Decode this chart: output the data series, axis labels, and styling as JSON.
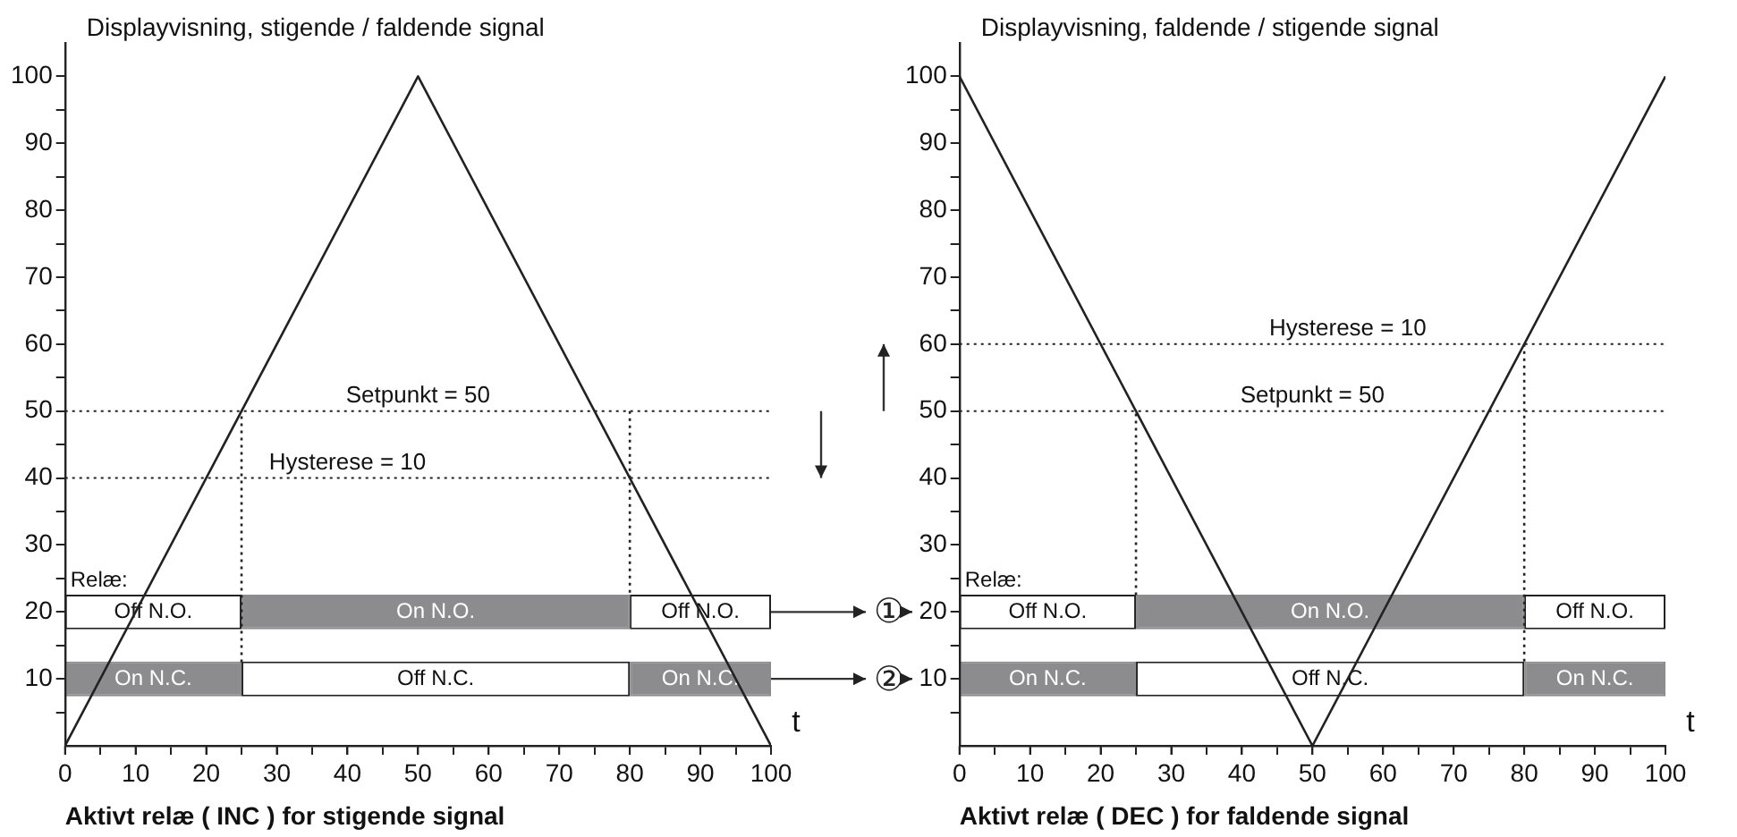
{
  "chart_data": [
    {
      "type": "line",
      "title": "Displayvisning, stigende / faldende signal",
      "xlabel": "t",
      "xlim": [
        0,
        100
      ],
      "ylim": [
        0,
        105
      ],
      "xticks": [
        0,
        {
          "value": 5,
          "label": null
        },
        10,
        {
          "value": 15,
          "label": null
        },
        20,
        {
          "value": 25,
          "label": null
        },
        30,
        {
          "value": 35,
          "label": null
        },
        40,
        {
          "value": 45,
          "label": null
        },
        50,
        {
          "value": 55,
          "label": null
        },
        60,
        {
          "value": 65,
          "label": null
        },
        70,
        {
          "value": 75,
          "label": null
        },
        80,
        {
          "value": 85,
          "label": null
        },
        90,
        {
          "value": 95,
          "label": null
        },
        100
      ],
      "yticks": [
        {
          "value": 5,
          "label": null
        },
        10,
        {
          "value": 15,
          "label": null
        },
        20,
        {
          "value": 25,
          "label": null
        },
        30,
        {
          "value": 35,
          "label": null
        },
        40,
        {
          "value": 45,
          "label": null
        },
        50,
        {
          "value": 55,
          "label": null
        },
        60,
        {
          "value": 65,
          "label": null
        },
        70,
        {
          "value": 75,
          "label": null
        },
        80,
        {
          "value": 85,
          "label": null
        },
        90,
        {
          "value": 95,
          "label": null
        },
        100
      ],
      "grid": false,
      "legend": false,
      "tick_labels": "y",
      "series": [
        {
          "color": "#222222",
          "x": [
            0,
            50,
            100
          ],
          "values": [
            0,
            100,
            0
          ],
          "line_style": "solid"
        },
        {
          "color": "#222222",
          "x": [
            25,
            25
          ],
          "values": [
            12.5,
            50
          ],
          "line_style": "dotted"
        },
        {
          "color": "#222222",
          "x": [
            80,
            80
          ],
          "values": [
            50,
            22.5
          ],
          "line_style": "dotted"
        }
      ],
      "ref_lines": [
        {
          "axis": "y",
          "value": 50,
          "label": "Setpunkt = 50",
          "line_style": "dotted",
          "color": "#222222"
        },
        {
          "axis": "y",
          "value": 40,
          "line_style": "dotted",
          "color": "#222222"
        }
      ],
      "annotations": [
        "Aktivt relæ ( INC ) for stigende signal",
        {
          "text": "Hysterese = 10",
          "x": 40,
          "y": 40
        }
      ]
    },
    {
      "type": "bar",
      "orientation": "horizontal",
      "stacked": true,
      "categories": [
        null,
        null
      ],
      "xlim": [
        0,
        100
      ],
      "series": [
        {
          "values": [
            25,
            25
          ],
          "colors": [
            "#ffffff",
            "#8c8c8e"
          ],
          "value_labels": [
            "Off N.O.",
            "On N.C."
          ]
        },
        {
          "values": [
            55,
            55
          ],
          "colors": [
            "#8c8c8e",
            "#ffffff"
          ],
          "value_labels": [
            "On N.O.",
            "Off N.C."
          ]
        },
        {
          "values": [
            20,
            20
          ],
          "colors": [
            "#ffffff",
            "#8c8c8e"
          ],
          "value_labels": [
            "Off N.O.",
            "On N.C."
          ]
        }
      ],
      "annotations": [
        "Relæ:",
        "①",
        "②"
      ],
      "xticks": [
        0,
        10,
        20,
        30,
        40,
        50,
        60,
        70,
        80,
        90,
        100
      ]
    },
    {
      "type": "line",
      "title": "Displayvisning, faldende / stigende signal",
      "xlabel": "t",
      "xlim": [
        0,
        100
      ],
      "ylim": [
        0,
        105
      ],
      "xticks": [
        0,
        {
          "value": 5,
          "label": null
        },
        10,
        {
          "value": 15,
          "label": null
        },
        20,
        {
          "value": 25,
          "label": null
        },
        30,
        {
          "value": 35,
          "label": null
        },
        40,
        {
          "value": 45,
          "label": null
        },
        50,
        {
          "value": 55,
          "label": null
        },
        60,
        {
          "value": 65,
          "label": null
        },
        70,
        {
          "value": 75,
          "label": null
        },
        80,
        {
          "value": 85,
          "label": null
        },
        90,
        {
          "value": 95,
          "label": null
        },
        100
      ],
      "yticks": [
        {
          "value": 5,
          "label": null
        },
        10,
        {
          "value": 15,
          "label": null
        },
        20,
        {
          "value": 25,
          "label": null
        },
        30,
        {
          "value": 35,
          "label": null
        },
        40,
        {
          "value": 45,
          "label": null
        },
        50,
        {
          "value": 55,
          "label": null
        },
        60,
        {
          "value": 65,
          "label": null
        },
        70,
        {
          "value": 75,
          "label": null
        },
        80,
        {
          "value": 85,
          "label": null
        },
        90,
        {
          "value": 95,
          "label": null
        },
        100
      ],
      "grid": false,
      "legend": false,
      "tick_labels": "y",
      "series": [
        {
          "color": "#222222",
          "x": [
            0,
            50,
            100
          ],
          "values": [
            100,
            0,
            100
          ],
          "line_style": "solid"
        },
        {
          "color": "#222222",
          "x": [
            25,
            25
          ],
          "values": [
            22.5,
            50
          ],
          "line_style": "dotted"
        },
        {
          "color": "#222222",
          "x": [
            80,
            80
          ],
          "values": [
            60,
            12.5
          ],
          "line_style": "dotted"
        }
      ],
      "ref_lines": [
        {
          "axis": "y",
          "value": 60,
          "line_style": "dotted",
          "color": "#222222"
        },
        {
          "axis": "y",
          "value": 50,
          "label": "Setpunkt = 50",
          "line_style": "dotted",
          "color": "#222222"
        }
      ],
      "annotations": [
        "Aktivt relæ ( DEC ) for faldende signal",
        {
          "text": "Hysterese = 10",
          "x": 55,
          "y": 60
        }
      ]
    },
    {
      "type": "bar",
      "orientation": "horizontal",
      "stacked": true,
      "categories": [
        null,
        null
      ],
      "xlim": [
        0,
        100
      ],
      "series": [
        {
          "values": [
            25,
            25
          ],
          "colors": [
            "#ffffff",
            "#8c8c8e"
          ],
          "value_labels": [
            "Off N.O.",
            "On N.C."
          ]
        },
        {
          "values": [
            55,
            55
          ],
          "colors": [
            "#8c8c8e",
            "#ffffff"
          ],
          "value_labels": [
            "On N.O.",
            "Off N.C."
          ]
        },
        {
          "values": [
            20,
            20
          ],
          "colors": [
            "#ffffff",
            "#8c8c8e"
          ],
          "value_labels": [
            "Off N.O.",
            "On N.C."
          ]
        }
      ],
      "annotations": [
        "Relæ:"
      ],
      "xticks": [
        0,
        10,
        20,
        30,
        40,
        50,
        60,
        70,
        80,
        90,
        100
      ]
    }
  ]
}
